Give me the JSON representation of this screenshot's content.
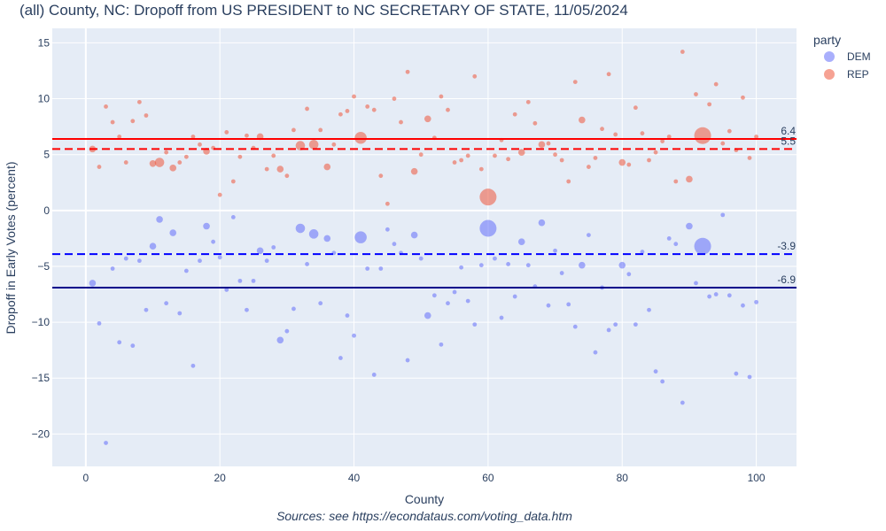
{
  "chart_data": {
    "type": "scatter",
    "title": "(all) County, NC: Dropoff from US PRESIDENT to NC SECRETARY OF STATE, 11/05/2024",
    "xlabel": "County",
    "ylabel": "Dropoff in Early Votes (percent)",
    "source": "Sources: see https://econdataus.com/voting_data.htm",
    "xlim": [
      -5,
      106
    ],
    "ylim": [
      -22.9,
      16.3
    ],
    "xticks": [
      0,
      20,
      40,
      60,
      80,
      100
    ],
    "yticks": [
      -20,
      -15,
      -10,
      -5,
      0,
      5,
      10,
      15
    ],
    "ytick_labels": [
      "−20",
      "−15",
      "−10",
      "−5",
      "0",
      "5",
      "10",
      "15"
    ],
    "legend": {
      "title": "party",
      "placement": "top-right",
      "items": [
        {
          "label": "DEM",
          "color": "#636efa"
        },
        {
          "label": "REP",
          "color": "#ef553b"
        }
      ]
    },
    "reference_lines": [
      {
        "party": "REP",
        "value": 6.4,
        "label": "6.4",
        "style": "solid",
        "color": "#ff0000"
      },
      {
        "party": "REP",
        "value": 5.5,
        "label": "5.5",
        "style": "dash",
        "color": "#ff0000"
      },
      {
        "party": "DEM",
        "value": -3.9,
        "label": "-3.9",
        "style": "dash",
        "color": "#0000ff"
      },
      {
        "party": "DEM",
        "value": -6.9,
        "label": "-6.9",
        "style": "solid",
        "color": "#00008b"
      }
    ],
    "series": [
      {
        "name": "REP",
        "color": "#ef553b",
        "points": [
          [
            1,
            5.5,
            2
          ],
          [
            2,
            3.9,
            1
          ],
          [
            3,
            9.3,
            1
          ],
          [
            4,
            7.9,
            1
          ],
          [
            5,
            6.6,
            1
          ],
          [
            6,
            4.3,
            1
          ],
          [
            7,
            8.0,
            1
          ],
          [
            8,
            9.7,
            1
          ],
          [
            9,
            8.5,
            1
          ],
          [
            10,
            4.2,
            2
          ],
          [
            11,
            4.3,
            3
          ],
          [
            12,
            5.2,
            1
          ],
          [
            13,
            3.8,
            2
          ],
          [
            14,
            4.3,
            1
          ],
          [
            15,
            4.8,
            1
          ],
          [
            16,
            6.6,
            1
          ],
          [
            17,
            5.9,
            1
          ],
          [
            18,
            5.3,
            2
          ],
          [
            19,
            5.6,
            1
          ],
          [
            20,
            1.4,
            1
          ],
          [
            21,
            7.0,
            1
          ],
          [
            22,
            2.6,
            1
          ],
          [
            23,
            4.8,
            1
          ],
          [
            24,
            6.7,
            1
          ],
          [
            25,
            5.6,
            1
          ],
          [
            26,
            6.6,
            2
          ],
          [
            27,
            3.7,
            1
          ],
          [
            28,
            4.9,
            1
          ],
          [
            29,
            3.7,
            2
          ],
          [
            30,
            3.1,
            1
          ],
          [
            31,
            7.2,
            1
          ],
          [
            32,
            5.8,
            3
          ],
          [
            33,
            9.1,
            1
          ],
          [
            34,
            5.9,
            3
          ],
          [
            35,
            7.2,
            1
          ],
          [
            36,
            3.9,
            2
          ],
          [
            37,
            5.9,
            1
          ],
          [
            38,
            8.6,
            1
          ],
          [
            39,
            8.9,
            1
          ],
          [
            40,
            10.2,
            1
          ],
          [
            41,
            6.5,
            4
          ],
          [
            42,
            9.3,
            1
          ],
          [
            43,
            9.0,
            1
          ],
          [
            44,
            3.1,
            1
          ],
          [
            45,
            0.6,
            1
          ],
          [
            46,
            10.0,
            1
          ],
          [
            47,
            7.9,
            1
          ],
          [
            48,
            12.4,
            1
          ],
          [
            49,
            3.5,
            2
          ],
          [
            50,
            5.0,
            1
          ],
          [
            51,
            8.2,
            2
          ],
          [
            52,
            6.5,
            1
          ],
          [
            53,
            10.2,
            1
          ],
          [
            54,
            9.0,
            1
          ],
          [
            55,
            4.3,
            1
          ],
          [
            56,
            4.5,
            1
          ],
          [
            57,
            4.9,
            1
          ],
          [
            58,
            12.0,
            1
          ],
          [
            59,
            3.7,
            1
          ],
          [
            60,
            1.2,
            5
          ],
          [
            61,
            4.9,
            1
          ],
          [
            62,
            6.3,
            1
          ],
          [
            63,
            4.6,
            1
          ],
          [
            64,
            8.6,
            1
          ],
          [
            65,
            5.2,
            2
          ],
          [
            66,
            9.7,
            1
          ],
          [
            67,
            7.8,
            1
          ],
          [
            68,
            5.9,
            2
          ],
          [
            69,
            6.0,
            1
          ],
          [
            70,
            5.0,
            1
          ],
          [
            71,
            4.5,
            1
          ],
          [
            72,
            2.6,
            1
          ],
          [
            73,
            11.5,
            1
          ],
          [
            74,
            8.1,
            2
          ],
          [
            75,
            3.9,
            1
          ],
          [
            76,
            4.7,
            1
          ],
          [
            77,
            7.3,
            1
          ],
          [
            78,
            12.2,
            1
          ],
          [
            79,
            6.8,
            1
          ],
          [
            80,
            4.3,
            2
          ],
          [
            81,
            4.1,
            1
          ],
          [
            82,
            9.2,
            1
          ],
          [
            83,
            6.9,
            1
          ],
          [
            84,
            4.5,
            1
          ],
          [
            85,
            5.2,
            1
          ],
          [
            86,
            6.2,
            1
          ],
          [
            87,
            6.6,
            1
          ],
          [
            88,
            2.6,
            1
          ],
          [
            89,
            14.2,
            1
          ],
          [
            90,
            2.8,
            2
          ],
          [
            91,
            10.4,
            1
          ],
          [
            92,
            6.7,
            5
          ],
          [
            93,
            9.5,
            1
          ],
          [
            94,
            11.3,
            1
          ],
          [
            95,
            6.0,
            1
          ],
          [
            96,
            7.1,
            1
          ],
          [
            97,
            5.4,
            1
          ],
          [
            98,
            10.1,
            1
          ],
          [
            99,
            4.7,
            1
          ],
          [
            100,
            6.6,
            1
          ]
        ]
      },
      {
        "name": "DEM",
        "color": "#636efa",
        "points": [
          [
            1,
            -6.5,
            2
          ],
          [
            2,
            -10.1,
            1
          ],
          [
            3,
            -20.8,
            1
          ],
          [
            4,
            -5.2,
            1
          ],
          [
            5,
            -11.8,
            1
          ],
          [
            6,
            -4.3,
            1
          ],
          [
            7,
            -12.1,
            1
          ],
          [
            8,
            -4.5,
            1
          ],
          [
            9,
            -8.9,
            1
          ],
          [
            10,
            -3.2,
            2
          ],
          [
            11,
            -0.8,
            2
          ],
          [
            12,
            -8.3,
            1
          ],
          [
            13,
            -2.0,
            2
          ],
          [
            14,
            -9.2,
            1
          ],
          [
            15,
            -5.4,
            1
          ],
          [
            16,
            -13.9,
            1
          ],
          [
            17,
            -4.5,
            1
          ],
          [
            18,
            -1.4,
            2
          ],
          [
            19,
            -2.8,
            1
          ],
          [
            20,
            -4.2,
            1
          ],
          [
            21,
            -7.1,
            1
          ],
          [
            22,
            -0.6,
            1
          ],
          [
            23,
            -6.3,
            1
          ],
          [
            24,
            -8.9,
            1
          ],
          [
            25,
            -6.3,
            1
          ],
          [
            26,
            -3.6,
            2
          ],
          [
            27,
            -4.5,
            1
          ],
          [
            28,
            -3.3,
            1
          ],
          [
            29,
            -11.6,
            2
          ],
          [
            30,
            -10.8,
            1
          ],
          [
            31,
            -8.8,
            1
          ],
          [
            32,
            -1.6,
            3
          ],
          [
            33,
            -4.8,
            1
          ],
          [
            34,
            -2.1,
            3
          ],
          [
            35,
            -8.3,
            1
          ],
          [
            36,
            -2.5,
            2
          ],
          [
            37,
            -3.8,
            1
          ],
          [
            38,
            -13.2,
            1
          ],
          [
            39,
            -9.4,
            1
          ],
          [
            40,
            -11.2,
            1
          ],
          [
            41,
            -2.4,
            4
          ],
          [
            42,
            -5.2,
            1
          ],
          [
            43,
            -14.7,
            1
          ],
          [
            44,
            -5.2,
            1
          ],
          [
            45,
            -1.7,
            1
          ],
          [
            46,
            -3.0,
            1
          ],
          [
            47,
            -3.8,
            1
          ],
          [
            48,
            -13.4,
            1
          ],
          [
            49,
            -2.2,
            2
          ],
          [
            50,
            -4.3,
            1
          ],
          [
            51,
            -9.4,
            2
          ],
          [
            52,
            -7.6,
            1
          ],
          [
            53,
            -12.0,
            1
          ],
          [
            54,
            -8.3,
            1
          ],
          [
            55,
            -7.3,
            1
          ],
          [
            56,
            -5.1,
            1
          ],
          [
            57,
            -8.1,
            1
          ],
          [
            58,
            -10.2,
            1
          ],
          [
            59,
            -4.9,
            1
          ],
          [
            60,
            -1.6,
            5
          ],
          [
            61,
            -4.3,
            1
          ],
          [
            62,
            -9.6,
            1
          ],
          [
            63,
            -4.8,
            1
          ],
          [
            64,
            -7.7,
            1
          ],
          [
            65,
            -2.8,
            2
          ],
          [
            66,
            -4.9,
            1
          ],
          [
            67,
            -6.8,
            1
          ],
          [
            68,
            -1.1,
            2
          ],
          [
            69,
            -8.5,
            1
          ],
          [
            70,
            -3.6,
            1
          ],
          [
            71,
            -5.6,
            1
          ],
          [
            72,
            -8.4,
            1
          ],
          [
            73,
            -10.4,
            1
          ],
          [
            74,
            -4.9,
            2
          ],
          [
            75,
            -2.2,
            1
          ],
          [
            76,
            -12.7,
            1
          ],
          [
            77,
            -6.9,
            1
          ],
          [
            78,
            -10.7,
            1
          ],
          [
            79,
            -10.2,
            1
          ],
          [
            80,
            -4.9,
            2
          ],
          [
            81,
            -5.7,
            1
          ],
          [
            82,
            -10.2,
            1
          ],
          [
            83,
            -3.7,
            1
          ],
          [
            84,
            -8.9,
            1
          ],
          [
            85,
            -14.4,
            1
          ],
          [
            86,
            -15.3,
            1
          ],
          [
            87,
            -2.5,
            1
          ],
          [
            88,
            -3.0,
            1
          ],
          [
            89,
            -17.2,
            1
          ],
          [
            90,
            -1.4,
            2
          ],
          [
            91,
            -6.5,
            1
          ],
          [
            92,
            -3.2,
            5
          ],
          [
            93,
            -7.7,
            1
          ],
          [
            94,
            -7.5,
            1
          ],
          [
            95,
            -0.4,
            1
          ],
          [
            96,
            -7.6,
            1
          ],
          [
            97,
            -14.6,
            1
          ],
          [
            98,
            -8.5,
            1
          ],
          [
            99,
            -14.9,
            1
          ],
          [
            100,
            -8.2,
            1
          ]
        ]
      }
    ]
  }
}
